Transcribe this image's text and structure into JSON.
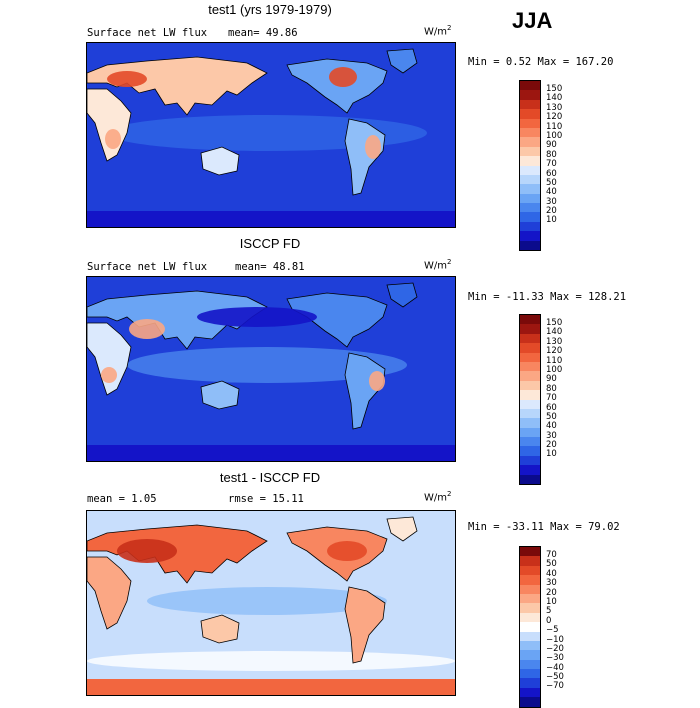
{
  "season": "JJA",
  "palette_main": [
    "#0b0b8c",
    "#1414c8",
    "#1f3fd8",
    "#2f66e6",
    "#4a86ee",
    "#6aa4f4",
    "#8fbef8",
    "#b7d6fb",
    "#dbe9fd",
    "#fde8d8",
    "#fcc8a8",
    "#fba784",
    "#f88660",
    "#f2663f",
    "#e34a28",
    "#c8301a",
    "#9c1610",
    "#7a0a0a"
  ],
  "palette_diff": [
    "#0b0b8c",
    "#1414c8",
    "#1f3fd8",
    "#2f66e6",
    "#4a86ee",
    "#6aa4f4",
    "#8fbef8",
    "#c8defc",
    "#ffffff",
    "#fde8d8",
    "#fcc8a8",
    "#fba784",
    "#f88660",
    "#f2663f",
    "#e34a28",
    "#c8301a",
    "#7a0a0a"
  ],
  "panels": [
    {
      "title": "test1 (yrs 1979-1979)",
      "variable": "Surface net LW flux",
      "stat1": "mean=  49.86",
      "stat2": "",
      "units": "W/m",
      "units_exp": "2",
      "minmax": "Min =   0.52 Max = 167.20",
      "ticks": [
        "150",
        "140",
        "130",
        "120",
        "110",
        "100",
        "90",
        "80",
        "70",
        "60",
        "50",
        "40",
        "30",
        "20",
        "10"
      ],
      "map_field": "model"
    },
    {
      "title": "ISCCP FD",
      "variable": "Surface net LW flux",
      "stat1": "mean=  48.81",
      "stat2": "",
      "units": "W/m",
      "units_exp": "2",
      "minmax": "Min = -11.33 Max = 128.21",
      "ticks": [
        "150",
        "140",
        "130",
        "120",
        "110",
        "100",
        "90",
        "80",
        "70",
        "60",
        "50",
        "40",
        "30",
        "20",
        "10"
      ],
      "map_field": "obs"
    },
    {
      "title": "test1 - ISCCP FD",
      "variable": "mean =   1.05",
      "stat1": "",
      "stat2": "rmse =  15.11",
      "units": "W/m",
      "units_exp": "2",
      "minmax": "Min = -33.11 Max =  79.02",
      "ticks": [
        "70",
        "50",
        "40",
        "30",
        "20",
        "10",
        "5",
        "0",
        "−5",
        "−10",
        "−20",
        "−30",
        "−40",
        "−50",
        "−70"
      ],
      "map_field": "diff"
    }
  ]
}
